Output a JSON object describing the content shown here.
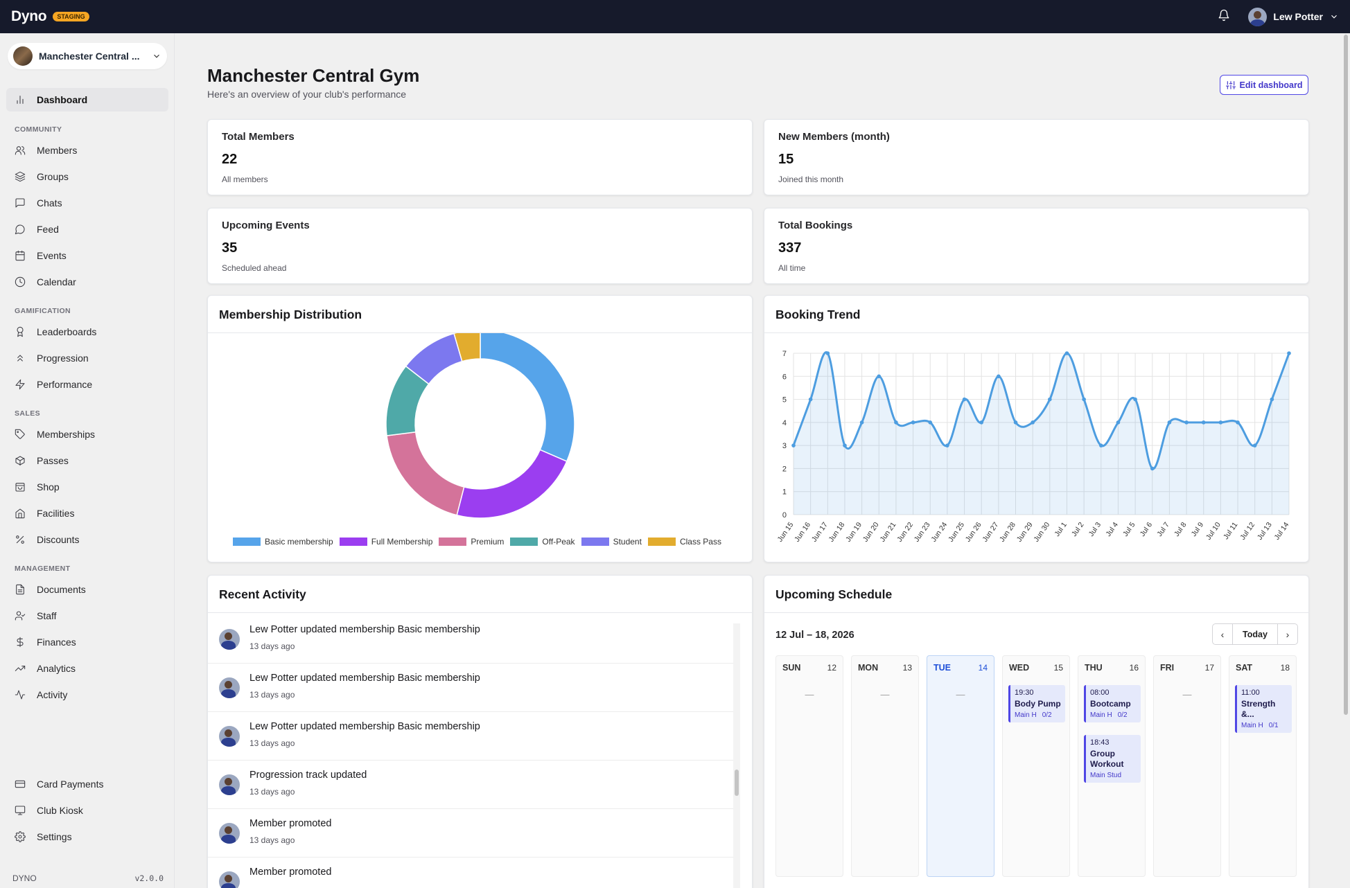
{
  "app": {
    "brand": "Dyno",
    "env_badge": "STAGING",
    "user_name": "Lew Potter"
  },
  "sidebar": {
    "club_name": "Manchester Central ...",
    "items": [
      {
        "label": "Dashboard",
        "icon": "bar-chart-icon"
      },
      {
        "label": "Members",
        "icon": "users-icon"
      },
      {
        "label": "Groups",
        "icon": "layers-icon"
      },
      {
        "label": "Chats",
        "icon": "message-square-icon"
      },
      {
        "label": "Feed",
        "icon": "message-circle-icon"
      },
      {
        "label": "Events",
        "icon": "calendar-icon"
      },
      {
        "label": "Calendar",
        "icon": "clock-icon"
      },
      {
        "label": "Leaderboards",
        "icon": "award-icon"
      },
      {
        "label": "Progression",
        "icon": "chevrons-up-icon"
      },
      {
        "label": "Performance",
        "icon": "zap-icon"
      },
      {
        "label": "Memberships",
        "icon": "tag-icon"
      },
      {
        "label": "Passes",
        "icon": "package-icon"
      },
      {
        "label": "Shop",
        "icon": "shopping-bag-icon"
      },
      {
        "label": "Facilities",
        "icon": "home-icon"
      },
      {
        "label": "Discounts",
        "icon": "percent-icon"
      },
      {
        "label": "Documents",
        "icon": "file-text-icon"
      },
      {
        "label": "Staff",
        "icon": "user-check-icon"
      },
      {
        "label": "Finances",
        "icon": "dollar-icon"
      },
      {
        "label": "Analytics",
        "icon": "trending-up-icon"
      },
      {
        "label": "Activity",
        "icon": "activity-icon"
      },
      {
        "label": "Card Payments",
        "icon": "credit-card-icon"
      },
      {
        "label": "Club Kiosk",
        "icon": "monitor-icon"
      },
      {
        "label": "Settings",
        "icon": "settings-icon"
      }
    ],
    "sections": [
      "COMMUNITY",
      "GAMIFICATION",
      "SALES",
      "MANAGEMENT"
    ],
    "footer_brand": "DYNO",
    "version": "v2.0.0"
  },
  "header": {
    "title": "Manchester Central Gym",
    "subtitle": "Here's an overview of your club's performance",
    "edit_label": "Edit dashboard"
  },
  "stats": [
    {
      "label": "Total Members",
      "value": "22",
      "desc": "All members"
    },
    {
      "label": "New Members (month)",
      "value": "15",
      "desc": "Joined this month"
    },
    {
      "label": "Upcoming Events",
      "value": "35",
      "desc": "Scheduled ahead"
    },
    {
      "label": "Total Bookings",
      "value": "337",
      "desc": "All time"
    }
  ],
  "membership_title": "Membership Distribution",
  "trend_title": "Booking Trend",
  "activity": {
    "title": "Recent Activity",
    "items": [
      {
        "text": "Lew Potter updated membership Basic membership",
        "when": "13 days ago"
      },
      {
        "text": "Lew Potter updated membership Basic membership",
        "when": "13 days ago"
      },
      {
        "text": "Lew Potter updated membership Basic membership",
        "when": "13 days ago"
      },
      {
        "text": "Progression track updated",
        "when": "13 days ago"
      },
      {
        "text": "Member promoted",
        "when": "13 days ago"
      },
      {
        "text": "Member promoted",
        "when": ""
      }
    ]
  },
  "schedule": {
    "title": "Upcoming Schedule",
    "week": "12 Jul – 18, 2026",
    "today_label": "Today",
    "empty_mark": "—",
    "days": [
      {
        "name": "SUN",
        "date": "12",
        "events": []
      },
      {
        "name": "MON",
        "date": "13",
        "events": []
      },
      {
        "name": "TUE",
        "date": "14",
        "today": true,
        "events": []
      },
      {
        "name": "WED",
        "date": "15",
        "events": [
          {
            "time": "19:30",
            "name": "Body Pump",
            "room": "Main H",
            "cap": "0/2"
          }
        ]
      },
      {
        "name": "THU",
        "date": "16",
        "events": [
          {
            "time": "08:00",
            "name": "Bootcamp",
            "room": "Main H",
            "cap": "0/2"
          },
          {
            "time": "18:43",
            "name": "Group Workout",
            "room": "Main Stud",
            "cap": ""
          }
        ]
      },
      {
        "name": "FRI",
        "date": "17",
        "events": []
      },
      {
        "name": "SAT",
        "date": "18",
        "events": [
          {
            "time": "11:00",
            "name": "Strength &...",
            "room": "Main H",
            "cap": "0/1"
          }
        ]
      }
    ]
  },
  "colors": {
    "accent": "#4f46e5",
    "line": "#4d9de0",
    "topbar": "#161a2b"
  },
  "chart_data": [
    {
      "type": "pie",
      "donut": true,
      "title": "Membership Distribution",
      "categories": [
        "Basic membership",
        "Full Membership",
        "Premium",
        "Off-Peak",
        "Student",
        "Class Pass"
      ],
      "values": [
        31.5,
        22.5,
        19,
        12.5,
        10,
        4.5
      ],
      "colors": [
        "#56a4ea",
        "#9b3ef0",
        "#d4739a",
        "#4fa9a8",
        "#7c78ef",
        "#e2ac2e"
      ],
      "legend": "bottom"
    },
    {
      "type": "area",
      "title": "Booking Trend",
      "x": [
        "Jun 15",
        "Jun 16",
        "Jun 17",
        "Jun 18",
        "Jun 19",
        "Jun 20",
        "Jun 21",
        "Jun 22",
        "Jun 23",
        "Jun 24",
        "Jun 25",
        "Jun 26",
        "Jun 27",
        "Jun 28",
        "Jun 29",
        "Jun 30",
        "Jul 1",
        "Jul 2",
        "Jul 3",
        "Jul 4",
        "Jul 5",
        "Jul 6",
        "Jul 7",
        "Jul 8",
        "Jul 9",
        "Jul 10",
        "Jul 11",
        "Jul 12",
        "Jul 13",
        "Jul 14"
      ],
      "values": [
        3,
        5,
        7,
        3,
        4,
        6,
        4,
        4,
        4,
        3,
        5,
        4,
        6,
        4,
        4,
        5,
        7,
        5,
        3,
        4,
        5,
        2,
        4,
        4,
        4,
        4,
        4,
        3,
        5,
        7
      ],
      "ylim": [
        0,
        7
      ],
      "yticks": [
        0,
        1,
        2,
        3,
        4,
        5,
        6,
        7
      ],
      "grid": true
    }
  ]
}
